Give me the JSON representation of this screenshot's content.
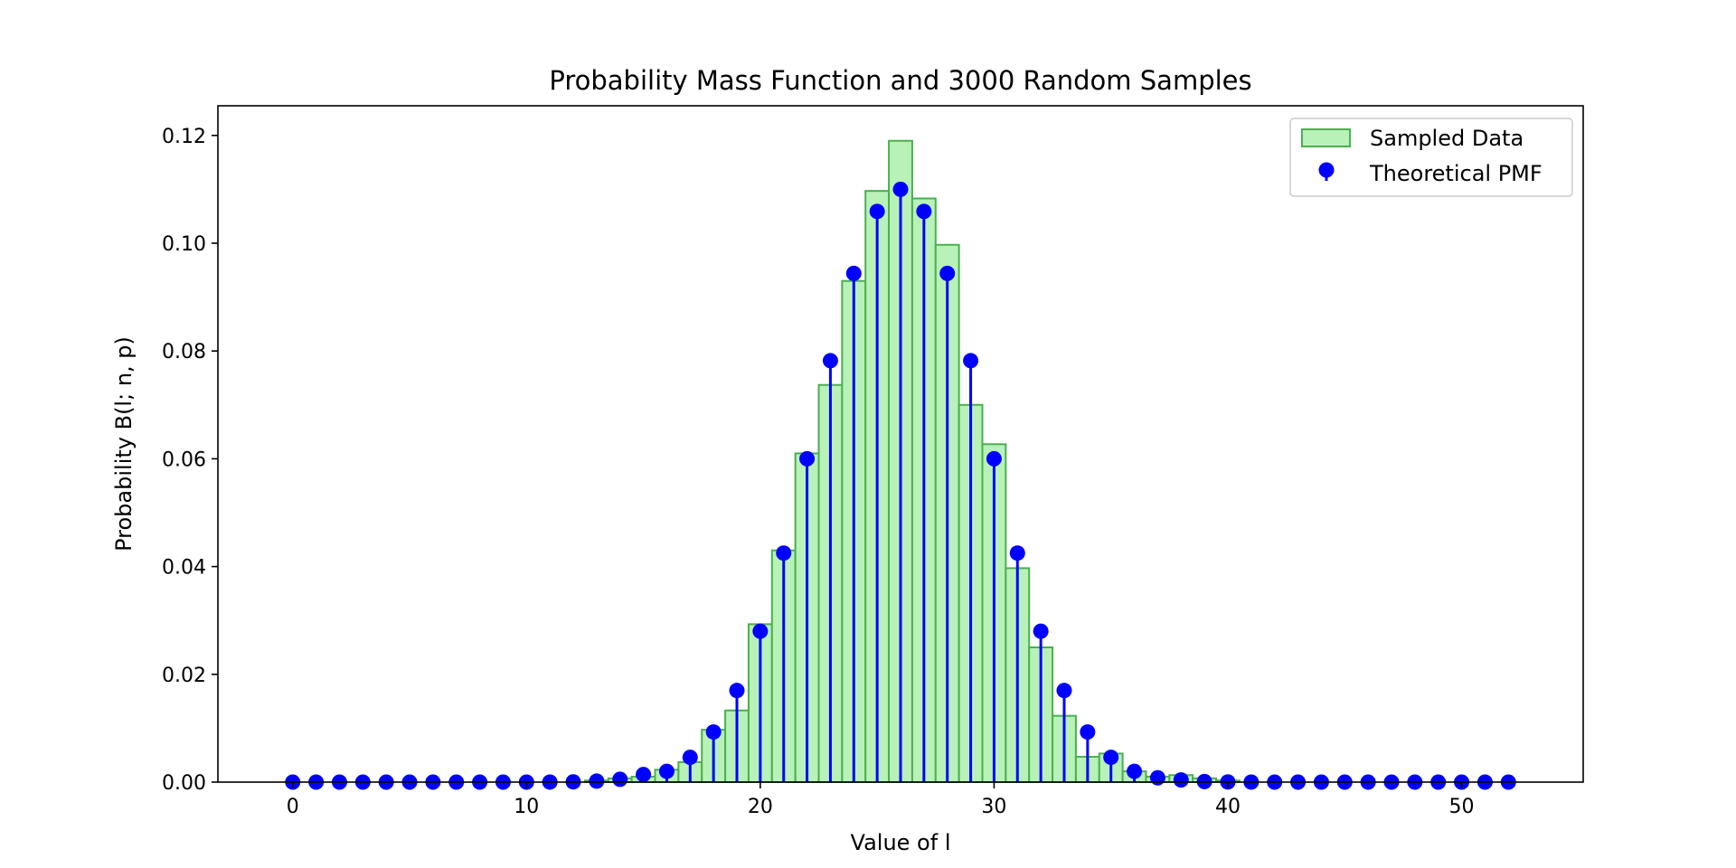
{
  "chart_data": {
    "type": "bar",
    "title": "Probability Mass Function and 3000 Random Samples",
    "xlabel": "Value of l",
    "ylabel": "Probability B(l; n, p)",
    "xlim": [
      -3.2,
      55.2
    ],
    "ylim": [
      0,
      0.1255
    ],
    "xticks": [
      0,
      10,
      20,
      30,
      40,
      50
    ],
    "yticks": [
      0.0,
      0.02,
      0.04,
      0.06,
      0.08,
      0.1,
      0.12
    ],
    "grid": false,
    "legend_position": "top-right",
    "colors": {
      "bar_fill": "#b8f2b8",
      "bar_edge": "#4caf50",
      "stem": "#0000ff",
      "marker": "#0000ff"
    },
    "series": [
      {
        "name": "Sampled Data",
        "kind": "histogram",
        "x": [
          13,
          14,
          15,
          16,
          17,
          18,
          19,
          20,
          21,
          22,
          23,
          24,
          25,
          26,
          27,
          28,
          29,
          30,
          31,
          32,
          33,
          34,
          35,
          36,
          37,
          38,
          39,
          40
        ],
        "values": [
          0.0003,
          0.0007,
          0.001,
          0.0023,
          0.0037,
          0.0097,
          0.0133,
          0.0293,
          0.043,
          0.061,
          0.0737,
          0.093,
          0.1097,
          0.119,
          0.1083,
          0.0997,
          0.07,
          0.0627,
          0.0397,
          0.025,
          0.0123,
          0.0047,
          0.0053,
          0.002,
          0.001,
          0.0013,
          0.0007,
          0.0003
        ]
      },
      {
        "name": "Theoretical PMF",
        "kind": "stem",
        "x": [
          0,
          1,
          2,
          3,
          4,
          5,
          6,
          7,
          8,
          9,
          10,
          11,
          12,
          13,
          14,
          15,
          16,
          17,
          18,
          19,
          20,
          21,
          22,
          23,
          24,
          25,
          26,
          27,
          28,
          29,
          30,
          31,
          32,
          33,
          34,
          35,
          36,
          37,
          38,
          39,
          40,
          41,
          42,
          43,
          44,
          45,
          46,
          47,
          48,
          49,
          50,
          51,
          52
        ],
        "values": [
          0,
          0,
          0,
          0,
          0,
          0,
          0,
          0,
          0,
          0,
          0,
          1e-05,
          5e-05,
          0.00018,
          0.00053,
          0.00141,
          0.002,
          0.0046,
          0.0093,
          0.017,
          0.028,
          0.0425,
          0.06,
          0.0782,
          0.0944,
          0.1059,
          0.11,
          0.1059,
          0.0944,
          0.0782,
          0.06,
          0.0425,
          0.028,
          0.017,
          0.0093,
          0.0046,
          0.002,
          0.0008,
          0.0004,
          0.0001,
          3e-05,
          1e-05,
          0,
          0,
          0,
          0,
          0,
          0,
          0,
          0,
          0,
          0,
          0
        ]
      }
    ]
  }
}
